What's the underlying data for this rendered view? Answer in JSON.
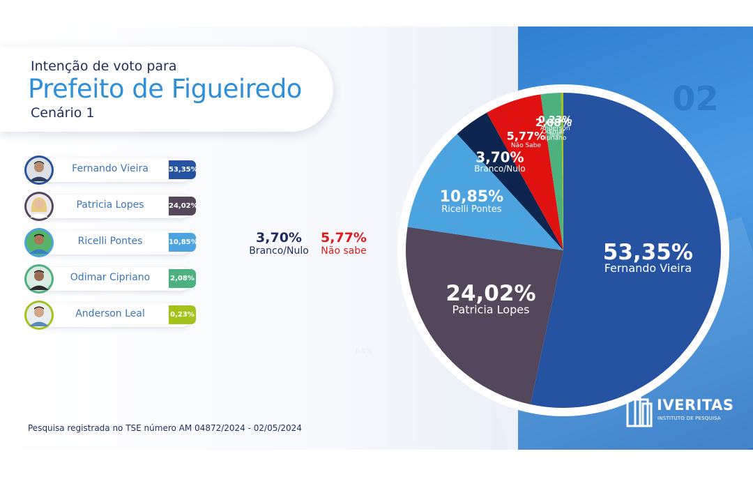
{
  "header": {
    "pretitle": "Intenção de voto para",
    "title": "Prefeito de Figueiredo",
    "subtitle": "Cenário 1",
    "card_number": "02"
  },
  "candidates": [
    {
      "name": "Fernando Vieira",
      "value_label": "53,35%",
      "color": "#2552a1"
    },
    {
      "name": "Patricia Lopes",
      "value_label": "24,02%",
      "color": "#54475b"
    },
    {
      "name": "Ricelli Pontes",
      "value_label": "10,85%",
      "color": "#4ba3df"
    },
    {
      "name": "Odimar Cipriano",
      "value_label": "2,08%",
      "color": "#4db07f"
    },
    {
      "name": "Anderson Leal",
      "value_label": "0,23%",
      "color": "#a4c31a"
    }
  ],
  "side_stats": {
    "branco": {
      "value": "3,70%",
      "label": "Branco/Nulo",
      "color": "#1f2d5c"
    },
    "nao_sabe": {
      "value": "5,77%",
      "label": "Não sabe",
      "color": "#e01b1b"
    }
  },
  "faint_label": "0,8%",
  "footer": "Pesquisa registrada no TSE  número  AM 04872/2024 - 02/05/2024",
  "logo": {
    "word": "IVERITAS",
    "sub": "INSTITUTO DE PESQUISA"
  },
  "chart_data": {
    "type": "pie",
    "title": "",
    "slices": [
      {
        "label": "Fernando Vieira",
        "value": 53.35,
        "value_label": "53,35%",
        "color": "#2552a1"
      },
      {
        "label": "Patricia Lopes",
        "value": 24.02,
        "value_label": "24,02%",
        "color": "#54475b"
      },
      {
        "label": "Ricelli Pontes",
        "value": 10.85,
        "value_label": "10,85%",
        "color": "#4ba3df"
      },
      {
        "label": "Branco/Nulo",
        "value": 3.7,
        "value_label": "3,70%",
        "color": "#0e2550"
      },
      {
        "label": "Não Sabe",
        "value": 5.77,
        "value_label": "5,77%",
        "color": "#e01111"
      },
      {
        "label": "Odimar Cipriano",
        "value": 2.08,
        "value_label": "2,08%",
        "color": "#4db07f"
      },
      {
        "label": "Anderson leal",
        "value": 0.23,
        "value_label": "0,23%",
        "color": "#a4c31a"
      }
    ]
  }
}
